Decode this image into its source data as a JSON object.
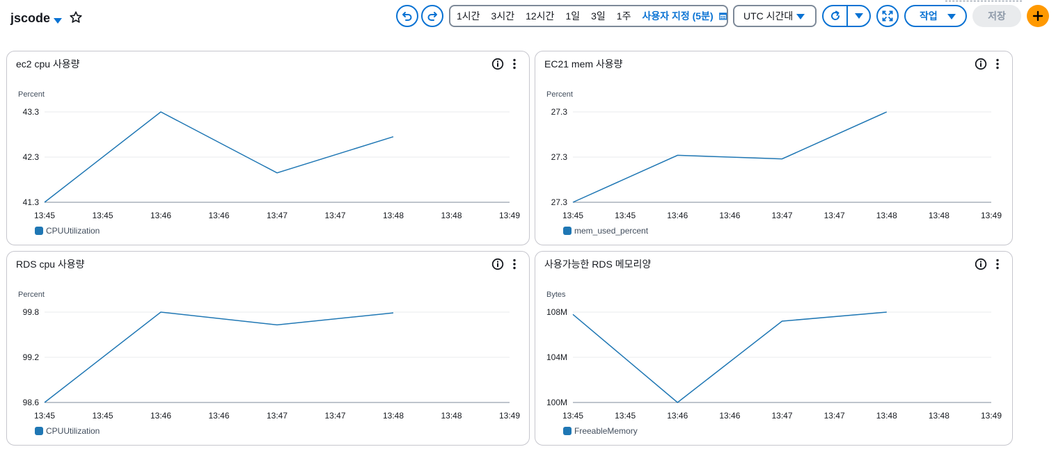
{
  "header": {
    "dashboard_name": "jscode",
    "time_ranges": [
      "1시간",
      "3시간",
      "12시간",
      "1일",
      "3일",
      "1주"
    ],
    "custom_range": "사용자 지정 (5분)",
    "timezone": "UTC 시간대",
    "actions_label": "작업",
    "save_label": "저장"
  },
  "colors": {
    "accent": "#0972d3",
    "series": "#1f77b4",
    "add": "#ff9900"
  },
  "widgets": [
    {
      "title": "ec2 cpu 사용량",
      "unit": "Percent",
      "legend": "CPUUtilization"
    },
    {
      "title": "EC21 mem 사용량",
      "unit": "Percent",
      "legend": "mem_used_percent"
    },
    {
      "title": "RDS cpu 사용량",
      "unit": "Percent",
      "legend": "CPUUtilization"
    },
    {
      "title": "사용가능한 RDS 메모리양",
      "unit": "Bytes",
      "legend": "FreeableMemory"
    }
  ],
  "chart_data": [
    {
      "type": "line",
      "title": "ec2 cpu 사용량",
      "ylabel": "Percent",
      "x": [
        "13:45",
        "13:45",
        "13:46",
        "13:46",
        "13:47",
        "13:47",
        "13:48",
        "13:48",
        "13:49"
      ],
      "y_ticks": [
        "43.3",
        "42.3",
        "41.3"
      ],
      "ylim": [
        41.3,
        43.3
      ],
      "series": [
        {
          "name": "CPUUtilization",
          "x": [
            "13:45",
            "13:46",
            "13:47",
            "13:48"
          ],
          "values": [
            41.3,
            43.3,
            41.95,
            42.75
          ]
        }
      ]
    },
    {
      "type": "line",
      "title": "EC21 mem 사용량",
      "ylabel": "Percent",
      "x": [
        "13:45",
        "13:45",
        "13:46",
        "13:46",
        "13:47",
        "13:47",
        "13:48",
        "13:48",
        "13:49"
      ],
      "y_ticks": [
        "27.3",
        "27.3",
        "27.3"
      ],
      "ylim": [
        0,
        1
      ],
      "series": [
        {
          "name": "mem_used_percent",
          "x": [
            "13:45",
            "13:46",
            "13:47",
            "13:48"
          ],
          "values": [
            0,
            0.52,
            0.48,
            1
          ]
        }
      ]
    },
    {
      "type": "line",
      "title": "RDS cpu 사용량",
      "ylabel": "Percent",
      "x": [
        "13:45",
        "13:45",
        "13:46",
        "13:46",
        "13:47",
        "13:47",
        "13:48",
        "13:48",
        "13:49"
      ],
      "y_ticks": [
        "99.8",
        "99.2",
        "98.6"
      ],
      "ylim": [
        98.6,
        99.8
      ],
      "series": [
        {
          "name": "CPUUtilization",
          "x": [
            "13:45",
            "13:46",
            "13:47",
            "13:48"
          ],
          "values": [
            98.6,
            99.8,
            99.63,
            99.79
          ]
        }
      ]
    },
    {
      "type": "line",
      "title": "사용가능한 RDS 메모리양",
      "ylabel": "Bytes",
      "x": [
        "13:45",
        "13:45",
        "13:46",
        "13:46",
        "13:47",
        "13:47",
        "13:48",
        "13:48",
        "13:49"
      ],
      "y_ticks": [
        "108M",
        "104M",
        "100M"
      ],
      "ylim": [
        100,
        108
      ],
      "series": [
        {
          "name": "FreeableMemory",
          "x": [
            "13:45",
            "13:46",
            "13:47",
            "13:48"
          ],
          "values": [
            107.8,
            100,
            107.2,
            108
          ]
        }
      ]
    }
  ]
}
